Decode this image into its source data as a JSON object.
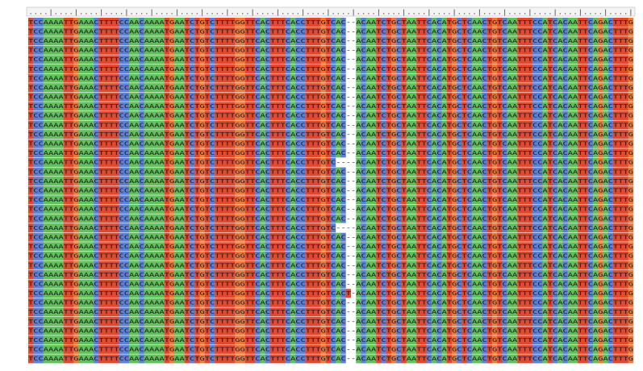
{
  "alignment": {
    "ruler": "....|....|....|....|....|....|....|....|....|....|....|....|....|....|....|....|....|....|....|....|....|....|....|....|",
    "base_colors": {
      "A": "#62c05c",
      "C": "#5b80d6",
      "G": "#ec7a3c",
      "T": "#e2482e",
      "-": "#ffffff"
    },
    "sequences": [
      "TCCAAAATTGAAACTTTTCCAACAAAATGAATCTGTCTTTTGGTTCACTTTCACCTTTGTCAC--ACAATCTGCTAATTCACATGCTCAACTGTCAATTTCCATCACAATTCAGACTTTG",
      "TCCAAAATTGAAACTTTTCCAACAAAATGAATCTGTCTTTTGGTTCACTTTCACCTTTGTCAC--ACAATCTGCTAATTCACATGCTCAACTGTCAATTTCCATCACAATTCAGACTTTG",
      "TCCAAAATTGAAACTTTTCCAACAAAATGAATCTGTCTTTTGGTTCACTTTCACCTTTGTCAC--ACAATCTGCTAATTCACATGCTCAACTGTCAATTTCCATCACAATTCAGACTTTG",
      "TCCAAAATTGAAACTTTTCCAACAAAATGAATCTGTCTTTTGGTTCACTTTCACCTTTGTCAC--ACAATCTGCTAATTCACATGCTCAACTGTCAATTTCCATCACAATTCAGACTTTG",
      "TCCAAAATTGAAACTTTTCCAACAAAATGAATCTGTCTTTTGGTTCACTTTCACCTTTGTCAC--ACAATCTGCTAATTCACATGCTCAACTGTCAATTTCCATCACAATTCAGACTTTG",
      "TCCAAAATTGAAACTTTTCCAACAAAATGAATCTGTCTTTTGGTTCACTTTCACCTTTGTCAC--ACAATCTGCTAATTCACATGCTCAACTGTCAATTTCCATCACAATTCAGACTTTG",
      "TCCAAAATTGAAACTTTTCCAACAAAATGAATCTGTCTTTTGGTTCACTTTCACCTTTGTCAC--ACAATCTGCTAATTCACATGCTCAACTGTCAATTTCCATCACAATTCAGACTTTG",
      "TCCAAAATTGAAACTTTTCCAACAAAATGAATCTGTCTTTTGGTTCACTTTCACCTTTGTCAC--ACAATCTGCTAATTCACATGCTCAACTGTCAATTTCCATCACAATTCAGACTTTG",
      "TCCAAAATTGAAACTTTTCCAACAAAATGAATCTGTCTTTTGGTTCACTTTCACCTTTGTCAC--ACAATCTGCTAATTCACATGCTCAACTGTCAATTTCCATCACAATTCAGACTTTG",
      "TCCAAAATTGAAACTTTTCCAACAAAATGAATCTGTCTTTTGGTTCACTTTCACCTTTGTCAC--ACAATCTGCTAATTCACATGCTCAACTGTCAATTTCCATCACAATTCAGACTTTG",
      "TCCAAAATTGAAACTTTTCCAACAAAATGAATCTGTCTTTTGGTTCACTTTCACCTTTGTCAC--ACAATCTGCTAATTCACATGCTCAACTGTCAATTTCCATCACAATTCAGACTTTG",
      "TCCAAAATTGAAACTTTTCCAACAAAATGAATCTGTCTTTTGGTTCACTTTCACCTTTGTCAC--ACAATCTGCTAATTCACATGCTCAACTGTCAATTTCCATCACAATTCAGACTTTG",
      "TCCAAAATTGAAACTTTTCCAACAAAATGAATCTGTCTTTTGGTTCACTTTCACCTTTGTCAC--ACAATCTGCTAATTCACATGCTCAACTGTCAATTTCCATCACAATTCAGACTTTG",
      "TCCAAAATTGAAACTTTTCCAACAAAATGAATCTGTCTTTTGGTTCACTTTCACCTTTGTCAC--ACAATCTGCTAATTCACATGCTCAACTGTCAATTTCCATCACAATTCAGACTTTG",
      "TCCAAAATTGAAACTTTTCCAACAAAATGAATCTGTCTTTTGGTTCACTTTCACCTTTGTCAC--ACAATCTGCTAATTCACATGCTCAACTGTCAATTTCCATCACAATTCAGACTTTG",
      "TCCAAAATTGAAACTTTTCCAACAAAATGAATCTGTCTTTTGGTTCACTTTCACCTTTGTC----ACAATCTGCTAATTCACATGCTCAACTGTCAATTTCCATCACAATTCAGACTTTG",
      "TCCAAAATTGAAACTTTTCCAACAAAATGAATCTGTCTTTTGGTTCACTTTCACCTTTGTCAC--ACAATCTGCTAATTCACATGCTCAACTGTCAATTTCCATCACAATTCAGACTTTG",
      "TCCAAAATTGAAACTTTTCCAACAAAATGAATCTGTCTTTTGGTTCACTTTCACCTTTGTCAC--ACAATCTGCTAATTCACATGCTCAACTGTCAATTTCCATCACAATTCAGACTTTG",
      "TCCAAAATTGAAACTTTTCCAACAAAATGAATCTGTCTTTTGGTTCACTTTCACCTTTGTCAC--ACAATCTGCTAATTCACATGCTCAACTGTCAATTTCCATCACAATTCAGACTTTG",
      "TCCAAAATTGAAACTTTTCCAACAAAATGAATCTGTCTTTTGGTTCACTTTCACCTTTGTCAC--ACAATCTGCTAATTCACATGCTCAACTGTCAATTTCCATCACAATTCAGACTTTG",
      "TCCAAAATTGAAACTTTTCCAACAAAATGAATCTGTCTTTTGGTTCACTTTCACCTTTGTCAC--ACAATCTGCTAATTCACATGCTCAACTGTCAATTTCCATCACAATTCAGACTTTG",
      "TCCAAAATTGAAACTTTTCCAACAAAATGAATCTGTCTTTTGGTTCACTTTCACCTTTGTCAC--ACAATCTGCTAATTCACATGCTCAACTGTCAATTTCCATCACAATTCAGACTTTG",
      "TCCAAAATTGAAACTTTTCCAACAAAATGAATCTGTCTTTTGGTTCACTTTCACCTTTGTC----ACAATCTGCTAATTCACATGCTCAACTGTCAATTTCCATCACAATTCAGACTTTG",
      "TCCAAAATTGAAACTTTTCCAACAAAATGAATCTGTCTTTTGGTTCACTTTCACCTTTGTCAC--ACAATCTGCTAATTCACATGCTCAACTGTCAATTTCCATCACAATTCAGACTTTG",
      "TCCAAAATTGAAACTTTTCCAACAAAATGAATCTGTCTTTTGGTTCACTTTCACCTTTGTCAC--ACAATCTGCTAATTCACATGCTCAACTGTCAATTTCCATCACAATTCAGACTTTG",
      "TCCAAAATTGAAACTTTTCCAACAAAATGAATCTGTCTTTTGGTTCACTTTCACCTTTGTCAC--ACAATCTGCTAATTCACATGCTCAACTGTCAATTTCCATCACAATTCAGACTTTG",
      "TCCAAAATTGAAACTTTTCCAACAAAATGAATCTGTCTTTTGGTTCACTTTCACCTTTGTCAC--ACAATCTGCTAATTCACATGCTCAACTGTCAATTTCCATCACAATTCAGACTTTG",
      "TCCAAAATTGAAACTTTTCCAACAAAATGAATCTGTCTTTTGGTTCACTTTCACCTTTGTCAC--ACAATCTGCTAATTCACATGCTCAACTGTCAATTTCCATCACAATTCAGACTTTG",
      "TCCAAAATTGAAACTTTTCCAACAAAATGAATCTGTCTTTTGGTTCACTTTCACCTTTGTCAC--ACAATCTGCTAATTCACATGCTCAACTGTCAATTTCCATCACAATTCAGACTTTG",
      "TCCAAAATTGAAACTTTTCCAACAAAATGAATCTGTCTTTTGGTTCACTTTCACCTTTGTCACT-ACAATCTGCTAATTCACATGCTCAACTGTCAATTTCCATCACAATTCAGACTTTG",
      "TCCAAAATTGAAACTTTTCCAACAAAATGAATCTGTCTTTTGGTTCACTTTCACCTTTGTCAC--ACAATCTGCTAATTCACATGCTCAACTGTCAATTTCCATCACAATTCAGACTTTG",
      "TCCAAAATTGAAACTTTTCCAACAAAATGAATCTGTCTTTTGGTTCACTTTCACCTTTGTCAC--ACAATCTGCTAATTCACATGCTCAACTGTCAATTTCCATCACAATTCAGACTTTG",
      "TCCAAAATTGAAACTTTTCCAACAAAATGAATCTGTCTTTTGGTTCACTTTCACCTTTGTCAC--ACAATCTGCTAATTCACATGCTCAACTGTCAATTTCCATCACAATTCAGACTTTG",
      "TCCAAAATTGAAACTTTTCCAACAAAATGAATCTGTCTTTTGGTTCACTTTCACCTTTGTCAC--ACAATCTGCTAATTCACATGCTCAACTGTCAATTTCCATCACAATTCAGACTTTG",
      "TCCAAAATTGAAACTTTTCCAACAAAATGAATCTGTCTTTTGGTTCACTTTCACCTTTGTCAC--ACAATCTGCTAATTCACATGCTCAACTGTCAATTTCCATCACAATTCAGACTTTG",
      "TCCAAAATTGAAACTTTTCCAACAAAATGAATCTGTCTTTTGGTTCACTTTCACCTTTGTCAC--ACAATCTGCTAATTCACATGCTCAACTGTCAATTTCCATCACAATTCAGACTTTG",
      "TCCAAAATTGAAACTTTTCCAACAAAATGAATCTGTCTTTTGGTTCACTTTCACCTTTGTCAC--ACAATCTGCTAATTCACATGCTCAACTGTCAATTTCCATCACAATTCAGACTTTG"
    ]
  }
}
